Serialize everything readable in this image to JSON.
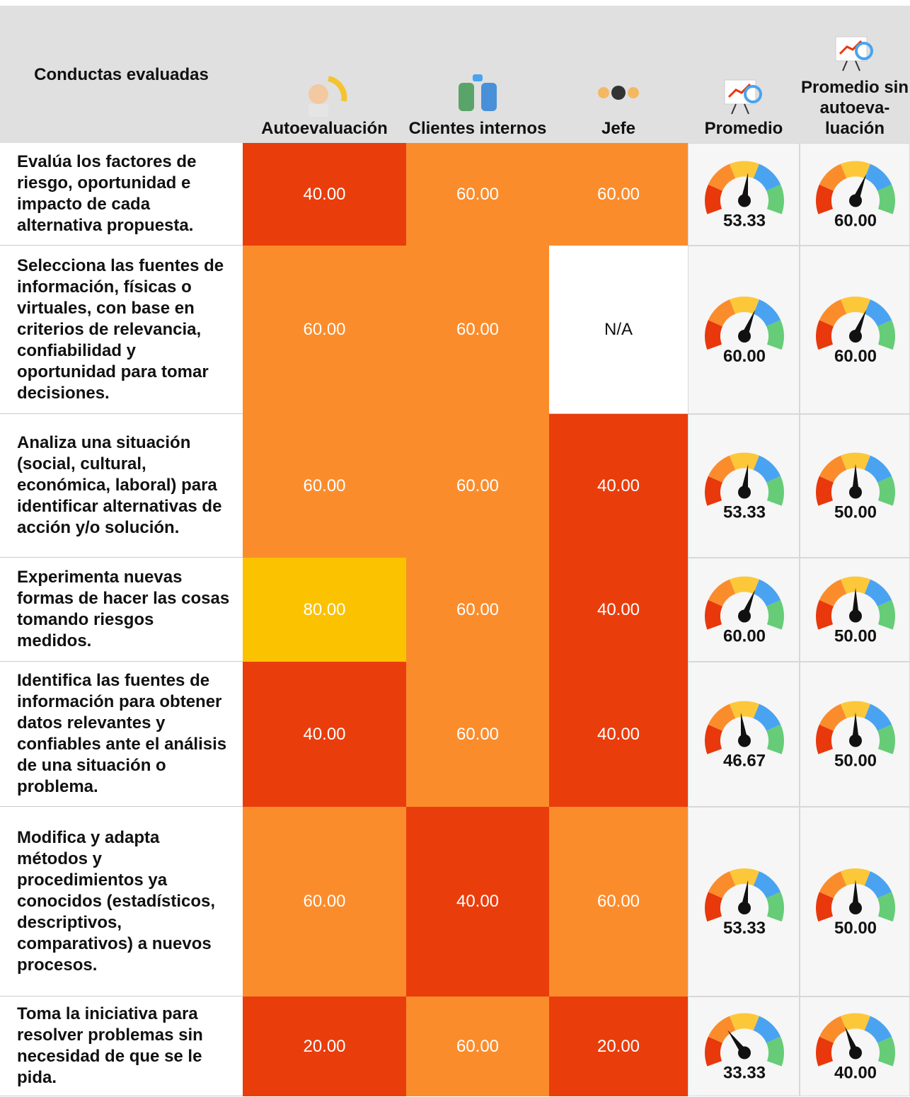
{
  "header": {
    "columns": [
      "Conductas evaluadas",
      "Autoevaluación",
      "Clientes internos",
      "Jefe",
      "Promedio",
      "Promedio sin autoeva-luación"
    ]
  },
  "gauge_scale": [
    0,
    100
  ],
  "gauge_colors": [
    "#e8380c",
    "#fb8c2c",
    "#fcc83a",
    "#4aa3f0",
    "#66cc77"
  ],
  "rows": [
    {
      "behavior": "Evalúa los factores de riesgo, oportunidad e impacto de cada alternativa propuesta.",
      "scores": [
        {
          "text": "40.00",
          "color": "#ea3d0c"
        },
        {
          "text": "60.00",
          "color": "#fb8c2c"
        },
        {
          "text": "60.00",
          "color": "#fb8c2c"
        }
      ],
      "average": "53.33",
      "average_without_self": "60.00"
    },
    {
      "behavior": "Selecciona las fuentes de información, físicas o virtuales, con base en criterios de relevancia, confiabilidad y oportunidad para tomar decisiones.",
      "scores": [
        {
          "text": "60.00",
          "color": "#fb8c2c"
        },
        {
          "text": "60.00",
          "color": "#fb8c2c"
        },
        {
          "text": "N/A",
          "color": "#ffffff"
        }
      ],
      "average": "60.00",
      "average_without_self": "60.00"
    },
    {
      "behavior": "Analiza una situación (social, cultural, económica, laboral) para identificar alternativas de acción y/o solución.",
      "scores": [
        {
          "text": "60.00",
          "color": "#fb8c2c"
        },
        {
          "text": "60.00",
          "color": "#fb8c2c"
        },
        {
          "text": "40.00",
          "color": "#ea3d0c"
        }
      ],
      "average": "53.33",
      "average_without_self": "50.00"
    },
    {
      "behavior": "Experimenta nuevas formas de hacer las cosas tomando riesgos medidos.",
      "scores": [
        {
          "text": "80.00",
          "color": "#fbc200"
        },
        {
          "text": "60.00",
          "color": "#fb8c2c"
        },
        {
          "text": "40.00",
          "color": "#ea3d0c"
        }
      ],
      "average": "60.00",
      "average_without_self": "50.00"
    },
    {
      "behavior": "Identifica las fuentes de información para obtener datos relevantes y confiables ante el análisis de una situación o problema.",
      "scores": [
        {
          "text": "40.00",
          "color": "#ea3d0c"
        },
        {
          "text": "60.00",
          "color": "#fb8c2c"
        },
        {
          "text": "40.00",
          "color": "#ea3d0c"
        }
      ],
      "average": "46.67",
      "average_without_self": "50.00"
    },
    {
      "behavior": "Modifica y adapta métodos y procedimientos ya conocidos (estadísticos, descriptivos, comparativos) a nuevos procesos.",
      "scores": [
        {
          "text": "60.00",
          "color": "#fb8c2c"
        },
        {
          "text": "40.00",
          "color": "#ea3d0c"
        },
        {
          "text": "60.00",
          "color": "#fb8c2c"
        }
      ],
      "average": "53.33",
      "average_without_self": "50.00"
    },
    {
      "behavior": "Toma la iniciativa para resolver problemas sin necesidad de que se le pida.",
      "scores": [
        {
          "text": "20.00",
          "color": "#ea3d0c"
        },
        {
          "text": "60.00",
          "color": "#fb8c2c"
        },
        {
          "text": "20.00",
          "color": "#ea3d0c"
        }
      ],
      "average": "33.33",
      "average_without_self": "40.00"
    }
  ]
}
